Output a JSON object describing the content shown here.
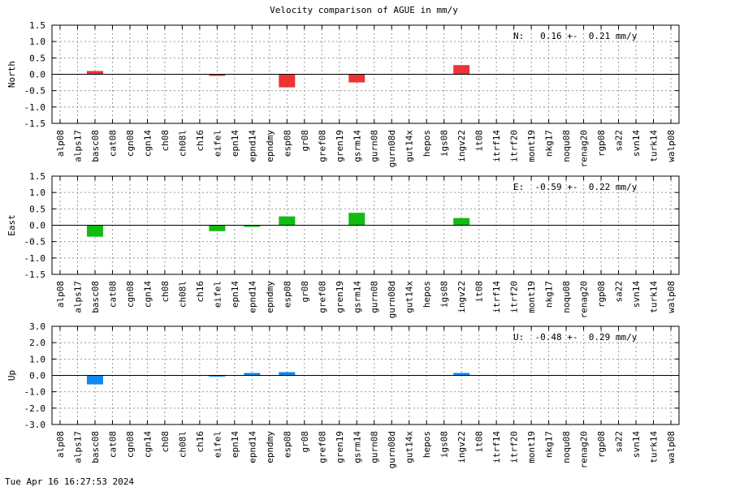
{
  "chart_data": {
    "title": "Velocity comparison of AGUE in mm/y",
    "type": "bar",
    "categories": [
      "alp08",
      "alps17",
      "basc08",
      "cat08",
      "cgn08",
      "cgn14",
      "ch08",
      "ch08l",
      "ch16",
      "eifel",
      "epn14",
      "epnd14",
      "epndmy",
      "esp08",
      "gr08",
      "gref08",
      "gren19",
      "gsrm14",
      "gurn08",
      "gurn08d",
      "gut14x",
      "hepos",
      "igs08",
      "ingv22",
      "it08",
      "itrf14",
      "itrf20",
      "mont19",
      "nkg17",
      "noqu08",
      "renag20",
      "rgp08",
      "sa22",
      "svn14",
      "turk14",
      "walp08"
    ],
    "panels": [
      {
        "ylabel": "North",
        "color": "#ee3333",
        "ylim": [
          -1.5,
          1.5
        ],
        "yticks": [
          "1.5",
          "1.0",
          "0.5",
          "0.0",
          "-0.5",
          "-1.0",
          "-1.5"
        ],
        "annotation": "N:   0.16 +-  0.21 mm/y",
        "values": [
          0,
          0,
          0.1,
          0,
          0,
          0,
          0,
          0,
          0,
          -0.05,
          0,
          0,
          0,
          -0.4,
          0,
          0,
          0,
          -0.25,
          0,
          0,
          0,
          0,
          0,
          0.28,
          0,
          0,
          0,
          0,
          0,
          0,
          0,
          0,
          0,
          0,
          0,
          0
        ]
      },
      {
        "ylabel": "East",
        "color": "#11bb11",
        "ylim": [
          -1.5,
          1.5
        ],
        "yticks": [
          "1.5",
          "1.0",
          "0.5",
          "0.0",
          "-0.5",
          "-1.0",
          "-1.5"
        ],
        "annotation": "E:  -0.59 +-  0.22 mm/y",
        "values": [
          0,
          0,
          -0.35,
          0,
          0,
          0,
          0,
          0,
          0,
          -0.18,
          0,
          -0.05,
          0,
          0.27,
          0,
          0,
          0,
          0.38,
          0,
          0,
          0,
          0,
          0,
          0.22,
          0,
          0,
          0,
          0,
          0,
          0,
          0,
          0,
          0,
          0,
          0,
          0
        ]
      },
      {
        "ylabel": "Up",
        "color": "#1188ee",
        "ylim": [
          -3.0,
          3.0
        ],
        "yticks": [
          "3.0",
          "2.0",
          "1.0",
          "0.0",
          "-1.0",
          "-2.0",
          "-3.0"
        ],
        "annotation": "U:  -0.48 +-  0.29 mm/y",
        "values": [
          0,
          0,
          -0.55,
          0,
          0,
          0,
          0,
          0,
          0,
          -0.07,
          0,
          0.15,
          0,
          0.2,
          0,
          0,
          0,
          0,
          0,
          0,
          0,
          0,
          0,
          0.15,
          0,
          0,
          0,
          0,
          0,
          0,
          0,
          0,
          0,
          0,
          0,
          0
        ]
      }
    ],
    "grid": true
  },
  "footer": {
    "timestamp": "Tue Apr 16 16:27:53 2024"
  }
}
